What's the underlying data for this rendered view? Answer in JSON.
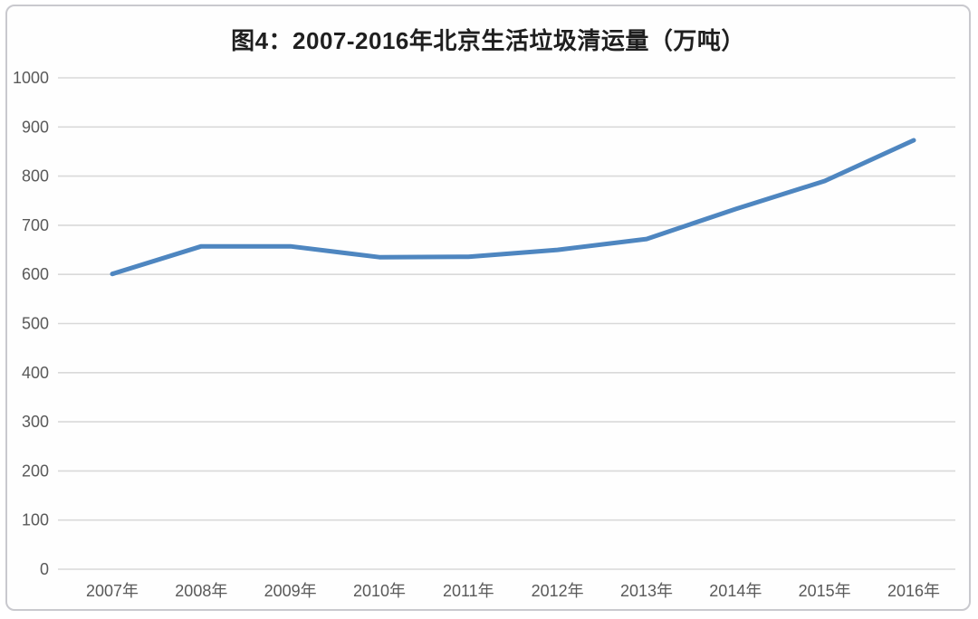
{
  "chart_data": {
    "type": "line",
    "title": "图4：2007-2016年北京生活垃圾清运量（万吨）",
    "categories": [
      "2007年",
      "2008年",
      "2009年",
      "2010年",
      "2011年",
      "2012年",
      "2013年",
      "2014年",
      "2015年",
      "2016年"
    ],
    "values": [
      601,
      657,
      657,
      635,
      636,
      650,
      672,
      733,
      790,
      873
    ],
    "xlabel": "",
    "ylabel": "",
    "ylim": [
      0,
      1000
    ],
    "ytick_step": 100,
    "grid": "horizontal-only",
    "legend_position": "none",
    "line_color": "#4e86c0",
    "gridline_color": "#d9d9d9",
    "tick_label_color": "#595959",
    "title_color": "#1f1f1f"
  }
}
